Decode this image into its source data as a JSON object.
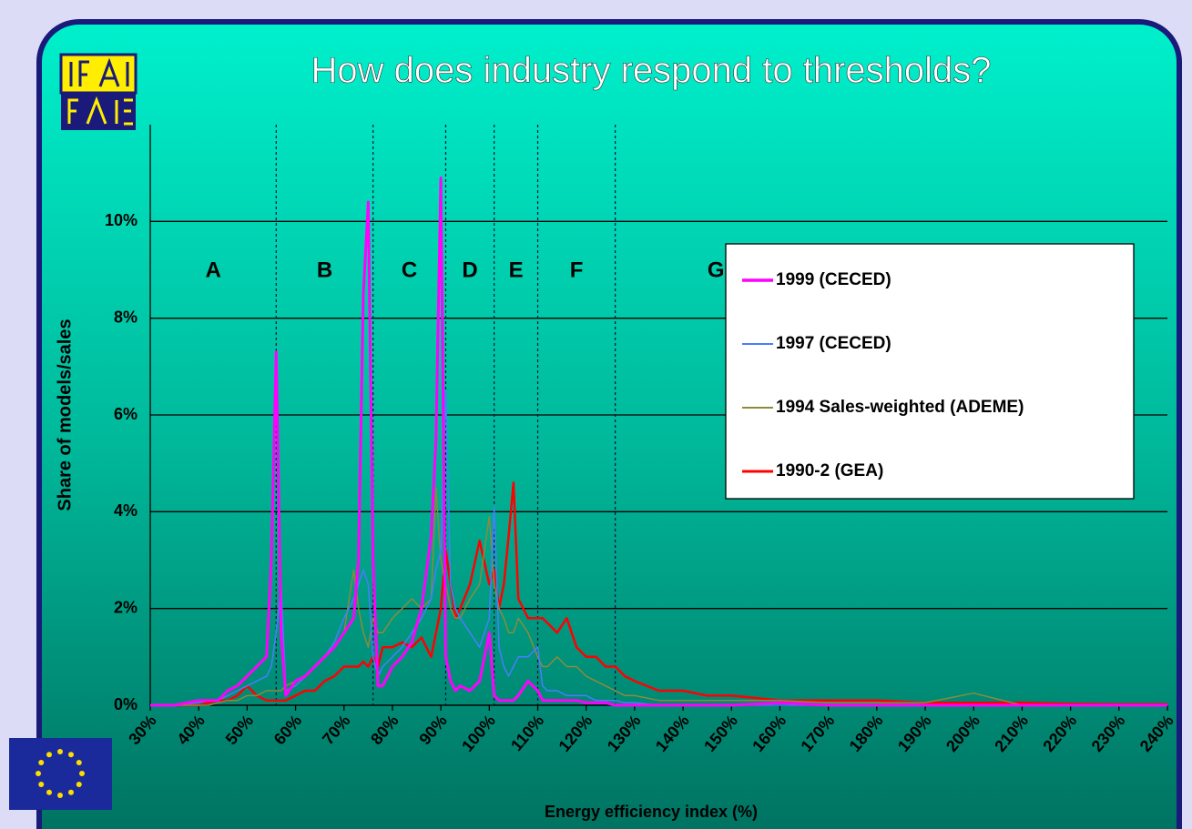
{
  "chart_data": {
    "type": "line",
    "title": "How does industry respond to thresholds?",
    "x_label": "Energy efficiency index (%)",
    "y_label": "Share of models/sales",
    "xlim": [
      30,
      240
    ],
    "ylim": [
      0,
      12
    ],
    "xticks": [
      {
        "value": 30,
        "label": "30%"
      },
      {
        "value": 40,
        "label": "40%"
      },
      {
        "value": 50,
        "label": "50%"
      },
      {
        "value": 60,
        "label": "60%"
      },
      {
        "value": 70,
        "label": "70%"
      },
      {
        "value": 80,
        "label": "80%"
      },
      {
        "value": 90,
        "label": "90%"
      },
      {
        "value": 100,
        "label": "100%"
      },
      {
        "value": 110,
        "label": "110%"
      },
      {
        "value": 120,
        "label": "120%"
      },
      {
        "value": 130,
        "label": "130%"
      },
      {
        "value": 140,
        "label": "140%"
      },
      {
        "value": 150,
        "label": "150%"
      },
      {
        "value": 160,
        "label": "160%"
      },
      {
        "value": 170,
        "label": "170%"
      },
      {
        "value": 180,
        "label": "180%"
      },
      {
        "value": 190,
        "label": "190%"
      },
      {
        "value": 200,
        "label": "200%"
      },
      {
        "value": 210,
        "label": "210%"
      },
      {
        "value": 220,
        "label": "220%"
      },
      {
        "value": 230,
        "label": "230%"
      },
      {
        "value": 240,
        "label": "240%"
      }
    ],
    "yticks": [
      {
        "value": 0,
        "label": "0%"
      },
      {
        "value": 2,
        "label": "2%"
      },
      {
        "value": 4,
        "label": "4%"
      },
      {
        "value": 6,
        "label": "6%"
      },
      {
        "value": 8,
        "label": "8%"
      },
      {
        "value": 10,
        "label": "10%"
      }
    ],
    "grid": true,
    "legend_position": "upper right",
    "thresholds": [
      56,
      76,
      91,
      101,
      110,
      126
    ],
    "classes": [
      "A",
      "B",
      "C",
      "D",
      "E",
      "F",
      "G"
    ],
    "x": [
      30,
      35,
      40,
      42,
      44,
      46,
      48,
      50,
      52,
      54,
      55,
      56,
      57,
      58,
      60,
      62,
      64,
      66,
      68,
      70,
      72,
      73,
      74,
      75,
      76,
      77,
      78,
      80,
      82,
      84,
      86,
      88,
      89,
      90,
      91,
      92,
      93,
      94,
      96,
      98,
      100,
      101,
      102,
      103,
      104,
      105,
      106,
      108,
      110,
      111,
      112,
      114,
      116,
      118,
      120,
      122,
      124,
      126,
      128,
      130,
      135,
      140,
      145,
      150,
      160,
      170,
      180,
      190,
      200,
      210,
      220,
      230,
      240
    ],
    "series": [
      {
        "name": "1999 (CECED)",
        "color": "#ff00ff",
        "width": 3,
        "values": [
          0,
          0,
          0.1,
          0.1,
          0.1,
          0.3,
          0.4,
          0.6,
          0.8,
          1.0,
          3.0,
          7.3,
          1.5,
          0.2,
          0.5,
          0.6,
          0.8,
          1.0,
          1.2,
          1.5,
          1.8,
          3.0,
          8.5,
          10.4,
          3.0,
          0.4,
          0.4,
          0.8,
          1.0,
          1.3,
          2.0,
          3.5,
          5.5,
          10.9,
          1.0,
          0.5,
          0.3,
          0.4,
          0.3,
          0.5,
          1.5,
          0.2,
          0.1,
          0.1,
          0.1,
          0.1,
          0.2,
          0.5,
          0.3,
          0.1,
          0.1,
          0.1,
          0.1,
          0.1,
          0.05,
          0.05,
          0.05,
          0,
          0,
          0,
          0,
          0,
          0,
          0,
          0.05,
          0,
          0,
          0,
          0,
          0,
          0,
          0,
          0
        ]
      },
      {
        "name": "1997 (CECED)",
        "color": "#4a7cff",
        "width": 1.5,
        "values": [
          0,
          0,
          0.05,
          0.1,
          0.1,
          0.2,
          0.3,
          0.4,
          0.5,
          0.6,
          0.8,
          1.5,
          2.5,
          0.3,
          0.4,
          0.6,
          0.8,
          1.0,
          1.3,
          1.8,
          2.2,
          2.5,
          2.8,
          2.5,
          1.0,
          0.6,
          0.8,
          1.0,
          1.2,
          1.5,
          1.8,
          2.2,
          2.8,
          3.2,
          6.5,
          2.5,
          2.0,
          1.8,
          1.5,
          1.2,
          1.8,
          4.1,
          1.2,
          0.8,
          0.6,
          0.8,
          1.0,
          1.0,
          1.2,
          0.4,
          0.3,
          0.3,
          0.2,
          0.2,
          0.2,
          0.1,
          0.1,
          0.1,
          0.05,
          0.05,
          0,
          0,
          0,
          0,
          0,
          0,
          0,
          0,
          0,
          0,
          0,
          0,
          0
        ]
      },
      {
        "name": "1994 Sales-weighted (ADEME)",
        "color": "#8c8a3c",
        "width": 1.5,
        "values": [
          0,
          0,
          0,
          0,
          0.05,
          0.1,
          0.1,
          0.2,
          0.2,
          0.3,
          0.3,
          0.3,
          0.3,
          0.4,
          0.5,
          0.6,
          0.8,
          1.0,
          1.2,
          1.5,
          2.8,
          2.0,
          1.5,
          1.2,
          1.8,
          1.5,
          1.5,
          1.8,
          2.0,
          2.2,
          2.0,
          2.2,
          4.5,
          3.0,
          2.5,
          2.0,
          1.8,
          1.8,
          2.2,
          2.5,
          3.9,
          2.5,
          2.0,
          1.8,
          1.5,
          1.5,
          1.8,
          1.5,
          1.0,
          0.8,
          0.8,
          1.0,
          0.8,
          0.8,
          0.6,
          0.5,
          0.4,
          0.3,
          0.2,
          0.2,
          0.1,
          0.1,
          0.1,
          0.1,
          0.1,
          0.05,
          0.05,
          0.05,
          0.25,
          0,
          0,
          0,
          0
        ]
      },
      {
        "name": "1990-2 (GEA)",
        "color": "#ff0000",
        "width": 2.5,
        "values": [
          0,
          0,
          0,
          0.05,
          0.1,
          0.1,
          0.2,
          0.4,
          0.2,
          0.1,
          0.1,
          0.1,
          0.1,
          0.1,
          0.2,
          0.3,
          0.3,
          0.5,
          0.6,
          0.8,
          0.8,
          0.8,
          0.9,
          0.8,
          1.0,
          0.8,
          1.2,
          1.2,
          1.3,
          1.2,
          1.4,
          1.0,
          1.5,
          2.0,
          3.2,
          2.5,
          1.8,
          2.0,
          2.5,
          3.4,
          2.5,
          2.8,
          2.0,
          2.5,
          3.5,
          4.6,
          2.2,
          1.8,
          1.8,
          1.8,
          1.7,
          1.5,
          1.8,
          1.2,
          1.0,
          1.0,
          0.8,
          0.8,
          0.6,
          0.5,
          0.3,
          0.3,
          0.2,
          0.2,
          0.1,
          0.1,
          0.1,
          0.05,
          0.05,
          0.05,
          0.03,
          0.02,
          0.02
        ]
      }
    ]
  }
}
